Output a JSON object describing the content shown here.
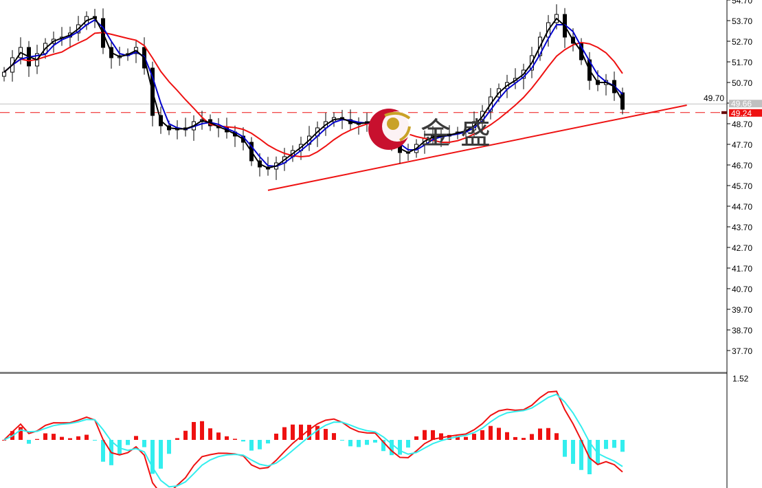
{
  "chart_data": {
    "type": "candlestick",
    "y_ticks": [
      "54.70",
      "53.70",
      "52.70",
      "51.70",
      "50.70",
      "49.70",
      "48.70",
      "47.70",
      "46.70",
      "45.70",
      "44.70",
      "43.70",
      "42.70",
      "41.70",
      "40.70",
      "39.70",
      "38.70",
      "37.70"
    ],
    "ylim": [
      37.2,
      54.7
    ],
    "close": [
      51.2,
      51.9,
      52.4,
      51.5,
      52.1,
      52.6,
      52.8,
      52.9,
      53.1,
      53.5,
      53.9,
      53.8,
      52.4,
      51.9,
      52.0,
      52.1,
      52.4,
      51.4,
      49.1,
      48.6,
      48.4,
      48.5,
      48.4,
      48.8,
      48.9,
      48.6,
      48.5,
      48.3,
      48.1,
      47.8,
      46.9,
      46.6,
      46.5,
      46.8,
      47.1,
      47.4,
      47.7,
      48.1,
      48.5,
      48.8,
      49.0,
      48.9,
      48.7,
      48.7,
      48.8,
      48.9,
      48.2,
      47.7,
      47.3,
      47.3,
      47.7,
      48.0,
      48.1,
      48.1,
      48.2,
      48.3,
      48.4,
      48.8,
      49.3,
      50.0,
      50.4,
      50.7,
      50.9,
      51.3,
      52.0,
      52.9,
      53.6,
      54.0,
      52.9,
      52.6,
      51.8,
      50.8,
      50.6,
      50.8,
      50.2,
      49.4
    ],
    "price_lines": {
      "ask": "49.66",
      "bid": "49.24"
    },
    "trendline": {
      "start": {
        "bar": 32,
        "price": 45.47
      },
      "end": {
        "bar": 82.8,
        "price": 49.6
      }
    },
    "colors": {
      "bull": "#ffffff",
      "bear": "#000000",
      "ma_fast": "#000000",
      "ma_mid": "#0000cc",
      "ma_slow": "#ee1111",
      "trend": "#ee1111",
      "macd_pos": "#ee1111",
      "macd_neg": "#33eeee",
      "bid": "#ee1111",
      "ask": "#c0c0c0"
    },
    "indicator": {
      "type": "macd",
      "y_tick": "1.52"
    }
  },
  "watermark": {
    "text": "金盛"
  }
}
